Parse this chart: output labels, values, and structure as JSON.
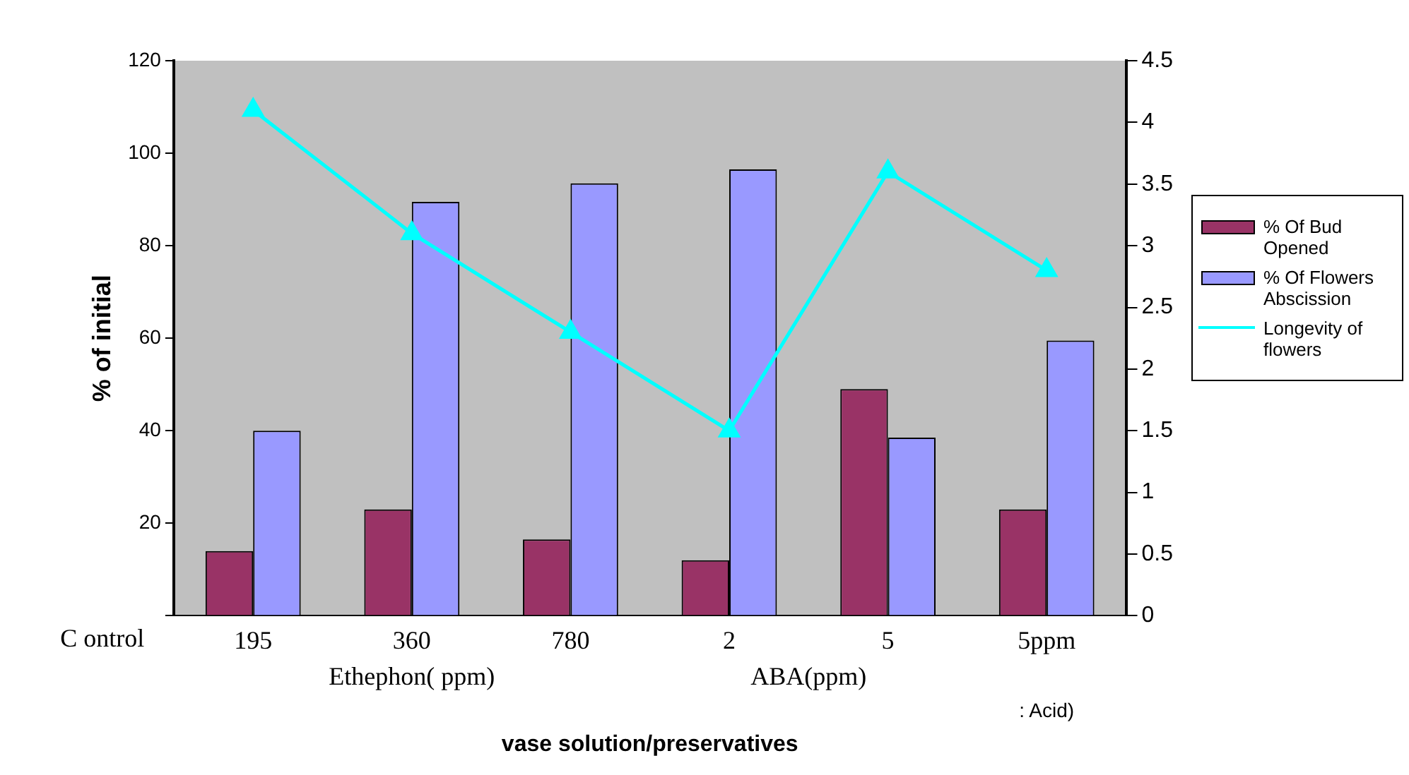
{
  "chart_data": {
    "type": "bar",
    "xlabel": "vase solution/preservatives",
    "ylabel": "% of initial",
    "categories": [
      "195",
      "360",
      "780",
      "2",
      "5",
      "5ppm"
    ],
    "series": [
      {
        "name": "% Of Bud Opened",
        "color": "#993366",
        "values": [
          14,
          23,
          16.5,
          12,
          49,
          23
        ]
      },
      {
        "name": "% Of Flowers Abscission",
        "color": "#9999ff",
        "values": [
          40,
          89.5,
          93.5,
          96.5,
          38.5,
          59.5
        ]
      },
      {
        "name": "Longevity of flowers",
        "color": "#00ffff",
        "type": "line",
        "axis": "y2",
        "marker": "triangle",
        "values": [
          4.1,
          3.1,
          2.3,
          1.5,
          3.6,
          2.8
        ]
      }
    ],
    "ylim": [
      0,
      120
    ],
    "yticks": [
      {
        "value": 0,
        "label": null
      },
      20,
      40,
      60,
      80,
      100,
      120
    ],
    "y2lim": [
      0,
      4.5
    ],
    "y2ticks": [
      0,
      0.5,
      1,
      1.5,
      2,
      2.5,
      3,
      3.5,
      4,
      4.5
    ],
    "legend": "right",
    "annotations": [
      "C ontrol",
      "Ethephon( ppm)",
      "ABA(ppm)",
      ": Acid)"
    ]
  }
}
